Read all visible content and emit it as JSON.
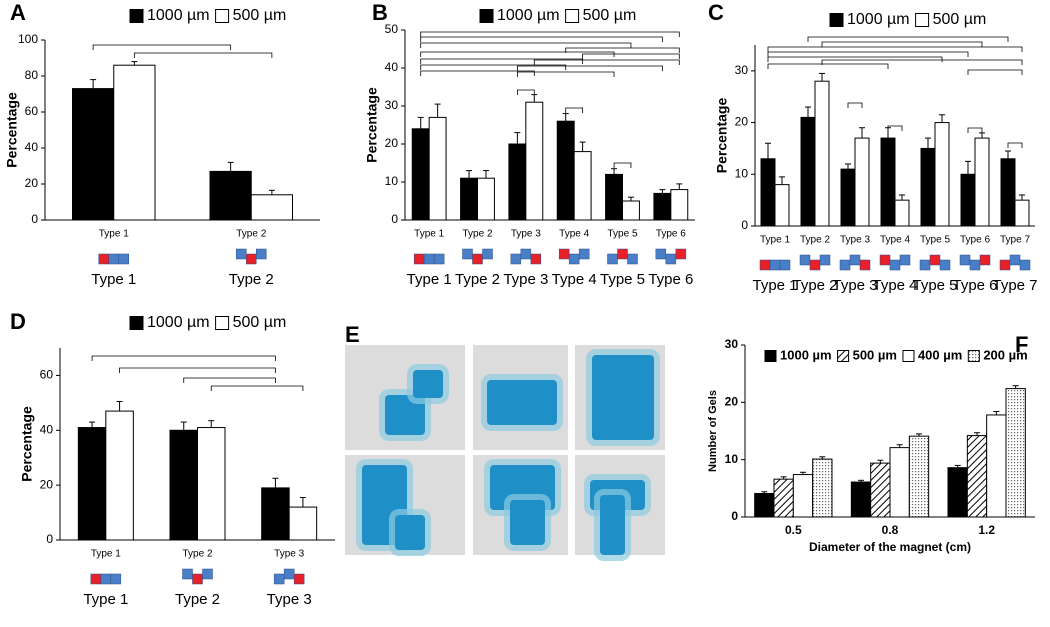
{
  "chart_data": [
    {
      "type": "bar",
      "panel": "A",
      "ylabel": "Percentage",
      "categories": [
        "Type 1",
        "Type 2"
      ],
      "series": [
        {
          "name": "1000 µm",
          "color": "#000000",
          "values": [
            73,
            27
          ],
          "errors": [
            5,
            5
          ]
        },
        {
          "name": "500 µm",
          "color": "#ffffff",
          "values": [
            86,
            14
          ],
          "errors": [
            2,
            2.5
          ]
        }
      ],
      "ylim": [
        0,
        100
      ],
      "yticks": [
        0,
        20,
        40,
        60,
        80,
        100
      ]
    },
    {
      "type": "bar",
      "panel": "B",
      "ylabel": "Percentage",
      "categories": [
        "Type 1",
        "Type 2",
        "Type 3",
        "Type 4",
        "Type 5",
        "Type 6"
      ],
      "series": [
        {
          "name": "1000 µm",
          "color": "#000000",
          "values": [
            24,
            11,
            20,
            26,
            12,
            7
          ],
          "errors": [
            3,
            2,
            3,
            2,
            1.5,
            1
          ]
        },
        {
          "name": "500 µm",
          "color": "#ffffff",
          "values": [
            27,
            11,
            31,
            18,
            5,
            8
          ],
          "errors": [
            3.5,
            2,
            2,
            2.5,
            1,
            1.5
          ]
        }
      ],
      "ylim": [
        0,
        50
      ],
      "yticks": [
        0,
        10,
        20,
        30,
        40,
        50
      ]
    },
    {
      "type": "bar",
      "panel": "C",
      "ylabel": "Percentage",
      "categories": [
        "Type 1",
        "Type 2",
        "Type 3",
        "Type 4",
        "Type 5",
        "Type 6",
        "Type 7"
      ],
      "series": [
        {
          "name": "1000 µm",
          "color": "#000000",
          "values": [
            13,
            21,
            11,
            17,
            15,
            10,
            13
          ],
          "errors": [
            3,
            2,
            1,
            2,
            2,
            2.5,
            1.5
          ]
        },
        {
          "name": "500 µm",
          "color": "#ffffff",
          "values": [
            8,
            28,
            17,
            5,
            20,
            17,
            5
          ],
          "errors": [
            1.5,
            1.5,
            2,
            1,
            1.5,
            1,
            1
          ]
        }
      ],
      "ylim": [
        0,
        35
      ],
      "yticks": [
        0,
        10,
        20,
        30
      ]
    },
    {
      "type": "bar",
      "panel": "D",
      "ylabel": "Percentage",
      "categories": [
        "Type 1",
        "Type 2",
        "Type 3"
      ],
      "series": [
        {
          "name": "1000 µm",
          "color": "#000000",
          "values": [
            41,
            40,
            19
          ],
          "errors": [
            2,
            3,
            3.5
          ]
        },
        {
          "name": "500 µm",
          "color": "#ffffff",
          "values": [
            47,
            41,
            12
          ],
          "errors": [
            3.5,
            2.5,
            3.5
          ]
        }
      ],
      "ylim": [
        0,
        70
      ],
      "yticks": [
        0,
        20,
        40,
        60
      ]
    },
    {
      "type": "image",
      "panel": "E"
    },
    {
      "type": "bar",
      "panel": "F",
      "ylabel": "Number of Gels",
      "xlabel": "Diameter of the magnet (cm)",
      "categories": [
        "0.5",
        "0.8",
        "1.2"
      ],
      "series": [
        {
          "name": "1000 µm",
          "color": "#000000",
          "pattern": "solid",
          "values": [
            4.1,
            6.1,
            8.6
          ],
          "errors": [
            0.3,
            0.3,
            0.4
          ]
        },
        {
          "name": "500 µm",
          "color": "#ffffff",
          "pattern": "hatch",
          "values": [
            6.6,
            9.4,
            14.2
          ],
          "errors": [
            0.4,
            0.5,
            0.5
          ]
        },
        {
          "name": "400 µm",
          "color": "#ffffff",
          "pattern": "solid",
          "values": [
            7.4,
            12.1,
            17.8
          ],
          "errors": [
            0.4,
            0.5,
            0.6
          ]
        },
        {
          "name": "200 µm",
          "color": "#ffffff",
          "pattern": "dots",
          "values": [
            10.1,
            14.1,
            22.4
          ],
          "errors": [
            0.4,
            0.4,
            0.5
          ]
        }
      ],
      "ylim": [
        0,
        30
      ],
      "yticks": [
        0,
        10,
        20,
        30
      ]
    }
  ]
}
